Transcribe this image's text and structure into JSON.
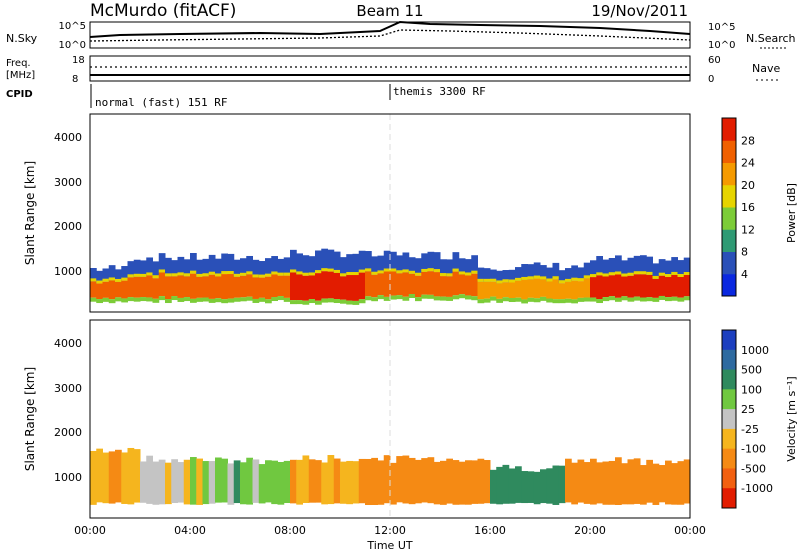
{
  "header": {
    "station": "McMurdo (fitACF)",
    "beam": "Beam 11",
    "date": "19/Nov/2011"
  },
  "panels": {
    "nsky_label": "N.Sky",
    "nsky_left_ticks": [
      "10^5",
      "10^0"
    ],
    "nsky_right_ticks": [
      "10^5",
      "10^0"
    ],
    "nsearch_label": "N.Search",
    "freq_label": "Freq.",
    "freq_unit": "[MHz]",
    "freq_ticks": [
      "18",
      "8"
    ],
    "nave_label": "Nave",
    "nave_ticks": [
      "60",
      "0"
    ],
    "cpid_label": "CPID",
    "cpid_mode_1": "normal (fast) 151 RF",
    "cpid_mode_2": "themis 3300 RF"
  },
  "axes": {
    "x_label": "Time UT",
    "y_label": "Slant Range [km]",
    "x_ticks": [
      "00:00",
      "04:00",
      "08:00",
      "12:00",
      "16:00",
      "20:00",
      "00:00"
    ],
    "y_ticks": [
      "1000",
      "2000",
      "3000",
      "4000"
    ]
  },
  "power_bar": {
    "label": "Power [dB]",
    "ticks": [
      "4",
      "8",
      "12",
      "16",
      "20",
      "24",
      "28"
    ],
    "colors": [
      "#0a28e0",
      "#2a50b8",
      "#2f9a74",
      "#7ccc38",
      "#e6d400",
      "#f59a00",
      "#f06000",
      "#e21c00"
    ]
  },
  "velocity_bar": {
    "label": "Velocity [m s⁻¹]",
    "ticks": [
      "1000",
      "500",
      "100",
      "25",
      "-25",
      "-100",
      "-500",
      "-1000"
    ],
    "colors": [
      "#1c3fbf",
      "#2e6aa0",
      "#2f8a5e",
      "#70c840",
      "#c4c4c4",
      "#f5b51e",
      "#f58a14",
      "#f26010",
      "#e21c00"
    ]
  },
  "chart_data": {
    "type": "heatmap",
    "title": "McMurdo (fitACF)  Beam 11  19/Nov/2011",
    "xlabel": "Time UT",
    "ylabel": "Slant Range [km]",
    "x_range_hours": [
      0,
      24
    ],
    "y_range_km": [
      180,
      4600
    ],
    "power_range_db": [
      0,
      30
    ],
    "velocity_range_ms": [
      -1000,
      1000
    ],
    "power_bands": [
      {
        "start_h": 0.0,
        "end_h": 1.5,
        "low_km": 500,
        "high_km": 1150,
        "level": "high"
      },
      {
        "start_h": 1.5,
        "end_h": 8.0,
        "low_km": 500,
        "high_km": 1400,
        "level": "high"
      },
      {
        "start_h": 8.0,
        "end_h": 11.0,
        "low_km": 450,
        "high_km": 1500,
        "level": "very_high"
      },
      {
        "start_h": 11.0,
        "end_h": 15.5,
        "low_km": 550,
        "high_km": 1450,
        "level": "high"
      },
      {
        "start_h": 15.5,
        "end_h": 20.0,
        "low_km": 500,
        "high_km": 1200,
        "level": "mixed"
      },
      {
        "start_h": 20.0,
        "end_h": 24.0,
        "low_km": 500,
        "high_km": 1350,
        "level": "very_high"
      }
    ],
    "velocity_bands": [
      {
        "start_h": 0.0,
        "end_h": 2.0,
        "low_km": 500,
        "high_km": 1700,
        "value_ms": -50
      },
      {
        "start_h": 2.0,
        "end_h": 5.0,
        "low_km": 500,
        "high_km": 1500,
        "value_ms": 0
      },
      {
        "start_h": 5.0,
        "end_h": 8.0,
        "low_km": 500,
        "high_km": 1450,
        "value_ms": 50
      },
      {
        "start_h": 8.0,
        "end_h": 11.0,
        "low_km": 500,
        "high_km": 1500,
        "value_ms": -80
      },
      {
        "start_h": 11.0,
        "end_h": 16.0,
        "low_km": 500,
        "high_km": 1500,
        "value_ms": -300
      },
      {
        "start_h": 16.0,
        "end_h": 19.0,
        "low_km": 500,
        "high_km": 1300,
        "value_ms": 200
      },
      {
        "start_h": 19.0,
        "end_h": 24.0,
        "low_km": 500,
        "high_km": 1450,
        "value_ms": -350
      }
    ]
  }
}
